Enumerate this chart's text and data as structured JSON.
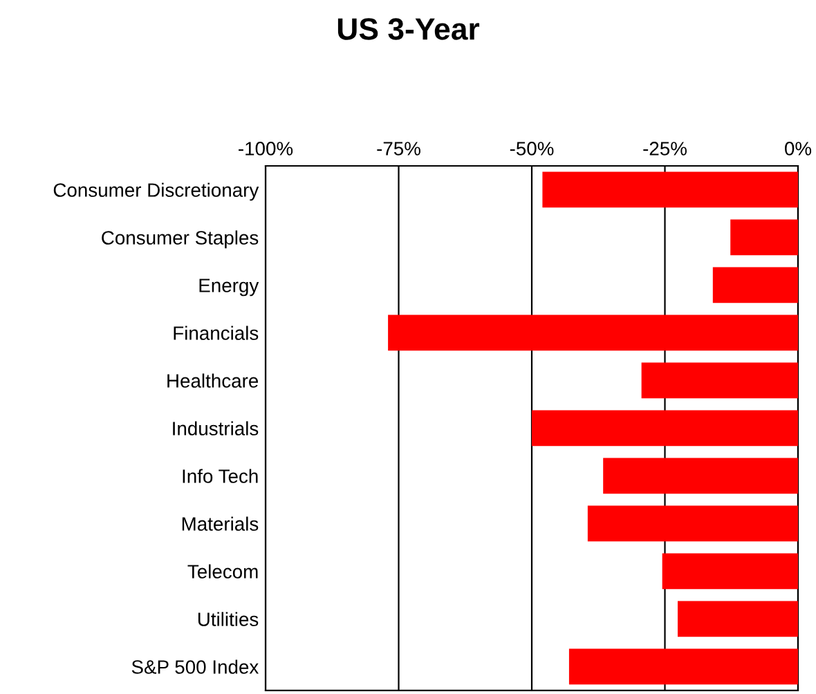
{
  "chart_data": {
    "type": "bar",
    "orientation": "horizontal",
    "title": "US 3-Year",
    "categories": [
      "Consumer Discretionary",
      "Consumer Staples",
      "Energy",
      "Financials",
      "Healthcare",
      "Industrials",
      "Info Tech",
      "Materials",
      "Telecom",
      "Utilities",
      "S&P 500 Index"
    ],
    "values": [
      -48,
      -12.7,
      -16,
      -77,
      -29.4,
      -50,
      -36.6,
      -39.5,
      -25.5,
      -22.6,
      -43
    ],
    "color": "#ff0000",
    "xlim": [
      -100,
      0
    ],
    "xticks": [
      {
        "value": -100,
        "label": "-100%"
      },
      {
        "value": -75,
        "label": "-75%"
      },
      {
        "value": -50,
        "label": "-50%"
      },
      {
        "value": -25,
        "label": "-25%"
      },
      {
        "value": 0,
        "label": "0%"
      }
    ],
    "grid": "x",
    "legend": false
  }
}
